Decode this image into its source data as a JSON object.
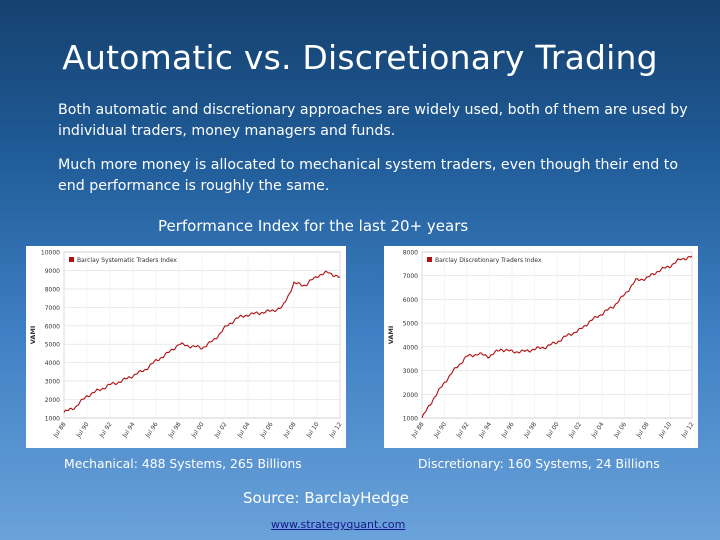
{
  "slide": {
    "title": "Automatic vs. Discretionary Trading",
    "paragraph1": "Both automatic and discretionary approaches are widely used, both of them are used by individual traders, money managers and funds.",
    "paragraph2": "Much more money is allocated to mechanical system traders, even though their end to end performance is roughly the same.",
    "subtitle": "Performance Index for the last 20+ years",
    "caption_mechanical": "Mechanical: 488 Systems, 265 Billions",
    "caption_discretionary": "Discretionary: 160 Systems, 24 Billions",
    "source": "Source: BarclayHedge",
    "link": "www.strategyquant.com"
  },
  "chart_data": [
    {
      "type": "line",
      "title": "",
      "legend": "Barclay Systematic Traders Index",
      "ylabel": "VAMI",
      "ylim": [
        1000,
        10000
      ],
      "yticks": [
        1000,
        2000,
        3000,
        4000,
        5000,
        6000,
        7000,
        8000,
        9000,
        10000
      ],
      "xticks": [
        "Jul 88",
        "Jul 90",
        "Jul 92",
        "Jul 94",
        "Jul 96",
        "Jul 98",
        "Jul 00",
        "Jul 02",
        "Jul 04",
        "Jul 06",
        "Jul 08",
        "Jul 10",
        "Jul 12"
      ],
      "color": "#b01010",
      "series": [
        {
          "x": [
            "Jul 88",
            "Jul 89",
            "Jul 90",
            "Jul 91",
            "Jul 92",
            "Jul 93",
            "Jul 94",
            "Jul 95",
            "Jul 96",
            "Jul 97",
            "Jul 98",
            "Jul 99",
            "Jul 00",
            "Jul 01",
            "Jul 02",
            "Jul 03",
            "Jul 04",
            "Jul 05",
            "Jul 06",
            "Jul 07",
            "Jul 08",
            "Jul 09",
            "Jul 10",
            "Jul 11",
            "Jul 12"
          ],
          "values": [
            1300,
            1600,
            2200,
            2500,
            2800,
            3000,
            3300,
            3600,
            4100,
            4500,
            5000,
            4900,
            4800,
            5200,
            5900,
            6400,
            6600,
            6700,
            6800,
            7000,
            8300,
            8200,
            8700,
            8900,
            8600
          ]
        }
      ]
    },
    {
      "type": "line",
      "title": "",
      "legend": "Barclay Discretionary Traders Index",
      "ylabel": "VAMI",
      "ylim": [
        1000,
        8000
      ],
      "yticks": [
        1000,
        2000,
        3000,
        4000,
        5000,
        6000,
        7000,
        8000
      ],
      "xticks": [
        "Jul 88",
        "Jul 90",
        "Jul 92",
        "Jul 94",
        "Jul 96",
        "Jul 98",
        "Jul 00",
        "Jul 02",
        "Jul 04",
        "Jul 06",
        "Jul 08",
        "Jul 10",
        "Jul 12"
      ],
      "color": "#b01010",
      "series": [
        {
          "x": [
            "Jul 88",
            "Jul 89",
            "Jul 90",
            "Jul 91",
            "Jul 92",
            "Jul 93",
            "Jul 94",
            "Jul 95",
            "Jul 96",
            "Jul 97",
            "Jul 98",
            "Jul 99",
            "Jul 00",
            "Jul 01",
            "Jul 02",
            "Jul 03",
            "Jul 04",
            "Jul 05",
            "Jul 06",
            "Jul 07",
            "Jul 08",
            "Jul 09",
            "Jul 10",
            "Jul 11",
            "Jul 12"
          ],
          "values": [
            1000,
            1800,
            2500,
            3100,
            3600,
            3700,
            3600,
            3900,
            3800,
            3800,
            3900,
            4000,
            4200,
            4500,
            4700,
            5100,
            5400,
            5700,
            6200,
            6800,
            6900,
            7200,
            7400,
            7700,
            7800
          ]
        }
      ]
    }
  ]
}
